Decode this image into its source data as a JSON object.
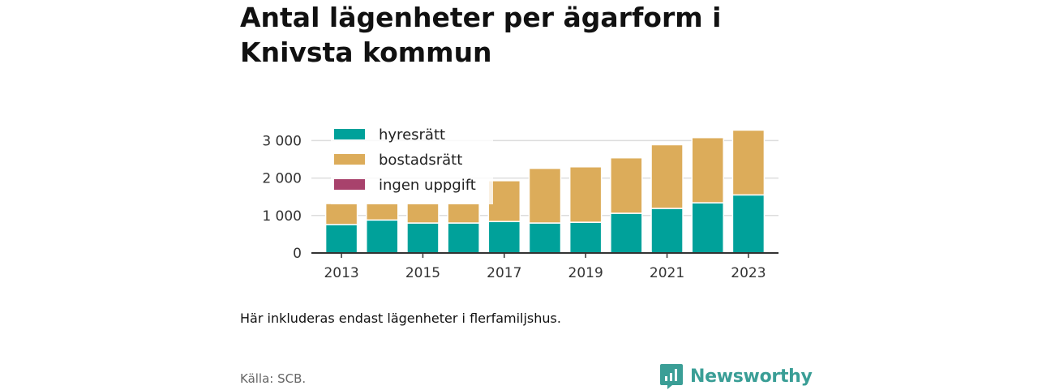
{
  "header": {
    "title": "Antal lägenheter per ägarform i Knivsta kommun"
  },
  "chart_data": {
    "type": "bar",
    "stacked": true,
    "title": "Antal lägenheter per ägarform i Knivsta kommun",
    "x": [
      2013,
      2014,
      2015,
      2016,
      2017,
      2018,
      2019,
      2020,
      2021,
      2022,
      2023
    ],
    "x_tick_labels": [
      "2013",
      "2015",
      "2017",
      "2019",
      "2021",
      "2023"
    ],
    "y_tick_labels": [
      "0",
      "1 000",
      "2 000",
      "3 000"
    ],
    "y_ticks": [
      0,
      1000,
      2000,
      3000
    ],
    "ylim": [
      0,
      3300
    ],
    "grid": true,
    "legend_position": "top-left",
    "series": [
      {
        "name": "hyresrätt",
        "color": "#00a19a",
        "values": [
          760,
          880,
          800,
          800,
          840,
          800,
          820,
          1060,
          1190,
          1340,
          1550
        ]
      },
      {
        "name": "bostadsrätt",
        "color": "#dcac5a",
        "values": [
          560,
          440,
          520,
          520,
          1090,
          1460,
          1480,
          1480,
          1700,
          1740,
          1730
        ]
      },
      {
        "name": "ingen uppgift",
        "color": "#a8426c",
        "values": [
          0,
          0,
          0,
          0,
          0,
          0,
          0,
          0,
          0,
          0,
          0
        ]
      }
    ]
  },
  "footer": {
    "note": "Här inkluderas endast lägenheter i flerfamiljshus.",
    "source": "Källa: SCB.",
    "brand": "Newsworthy"
  }
}
